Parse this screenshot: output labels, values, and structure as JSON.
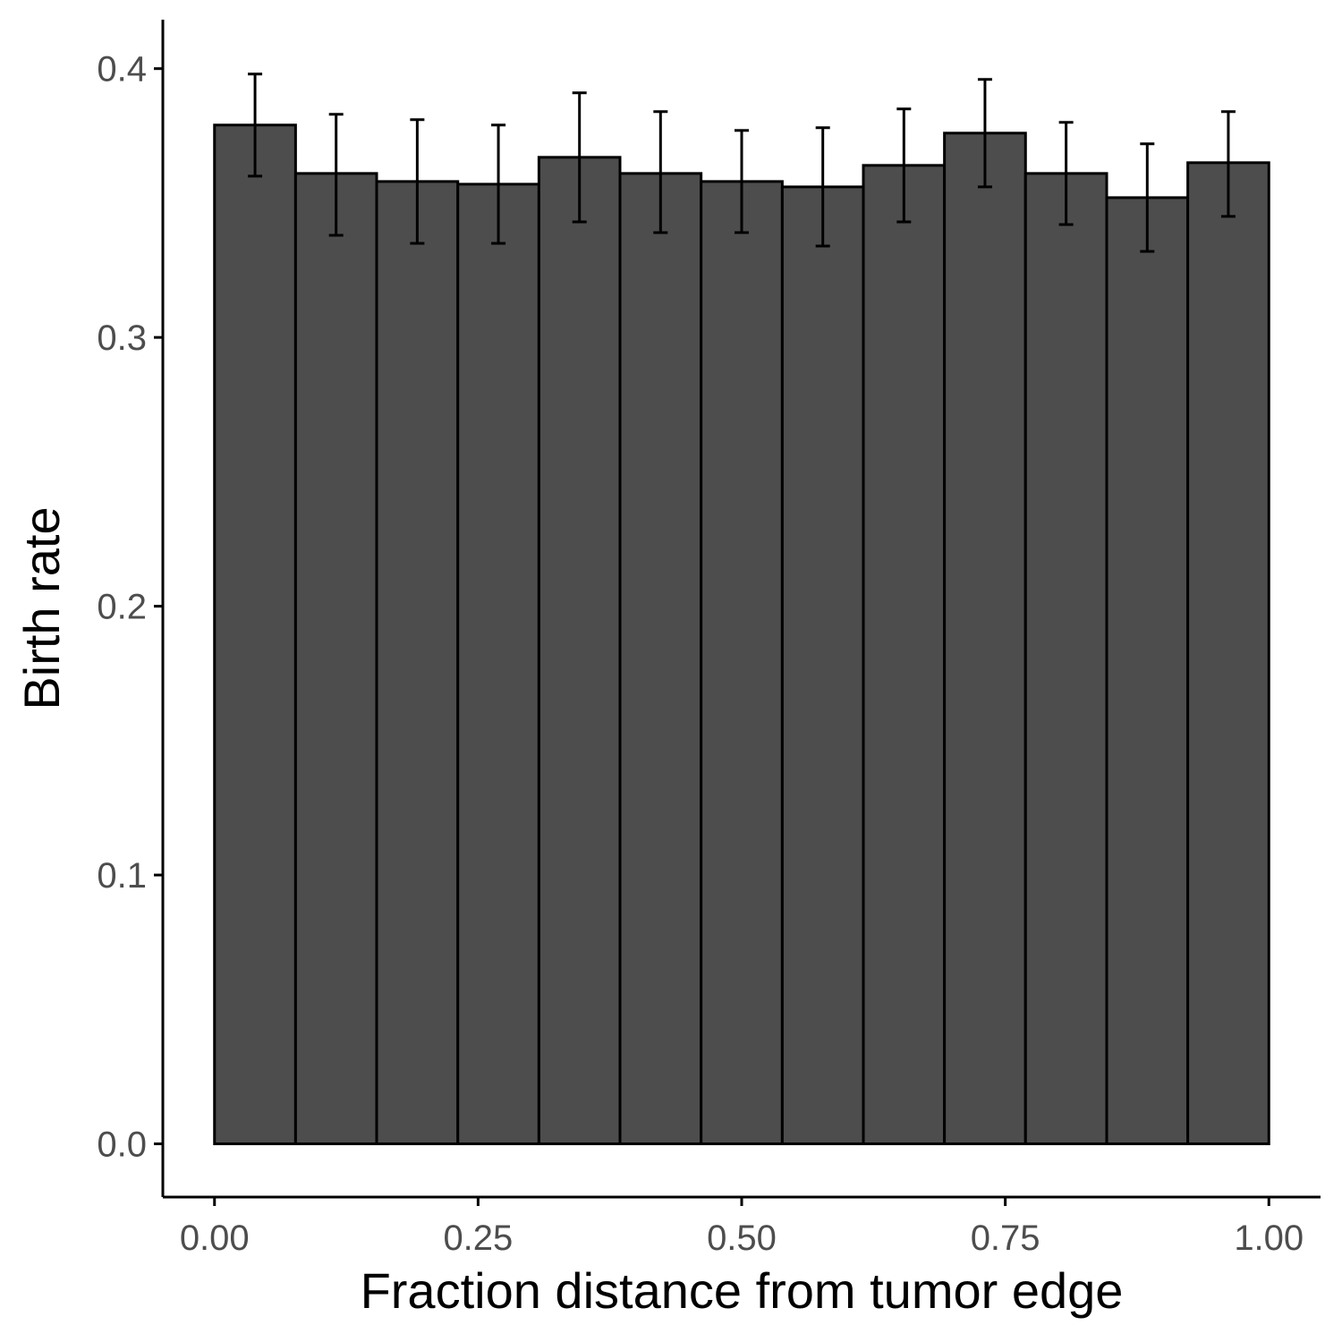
{
  "chart_data": {
    "type": "bar",
    "title": "",
    "xlabel": "Fraction distance from tumor edge",
    "ylabel": "Birth rate",
    "x_ticks": [
      "0.00",
      "0.25",
      "0.50",
      "0.75",
      "1.00"
    ],
    "x_tick_values": [
      0.0,
      0.25,
      0.5,
      0.75,
      1.0
    ],
    "y_ticks": [
      "0.0",
      "0.1",
      "0.2",
      "0.3",
      "0.4"
    ],
    "y_tick_values": [
      0.0,
      0.1,
      0.2,
      0.3,
      0.4
    ],
    "xlim": [
      -0.049,
      1.049
    ],
    "ylim": [
      -0.0198,
      0.4182
    ],
    "bin_edges": [
      0.0,
      0.0769,
      0.1538,
      0.2308,
      0.3077,
      0.3846,
      0.4615,
      0.5385,
      0.6154,
      0.6923,
      0.7692,
      0.8462,
      0.9231,
      1.0
    ],
    "values": [
      0.379,
      0.361,
      0.358,
      0.357,
      0.367,
      0.361,
      0.358,
      0.356,
      0.364,
      0.376,
      0.361,
      0.352,
      0.365
    ],
    "error_low": [
      0.36,
      0.338,
      0.335,
      0.335,
      0.343,
      0.339,
      0.339,
      0.334,
      0.343,
      0.356,
      0.342,
      0.332,
      0.345
    ],
    "error_high": [
      0.398,
      0.383,
      0.381,
      0.379,
      0.391,
      0.384,
      0.377,
      0.378,
      0.385,
      0.396,
      0.38,
      0.372,
      0.384
    ],
    "grid": false,
    "legend": "none",
    "colors": {
      "bar_fill": "#4d4d4d",
      "bar_outline": "#000000",
      "axis": "#000000",
      "tick_text": "#4d4d4d"
    }
  }
}
